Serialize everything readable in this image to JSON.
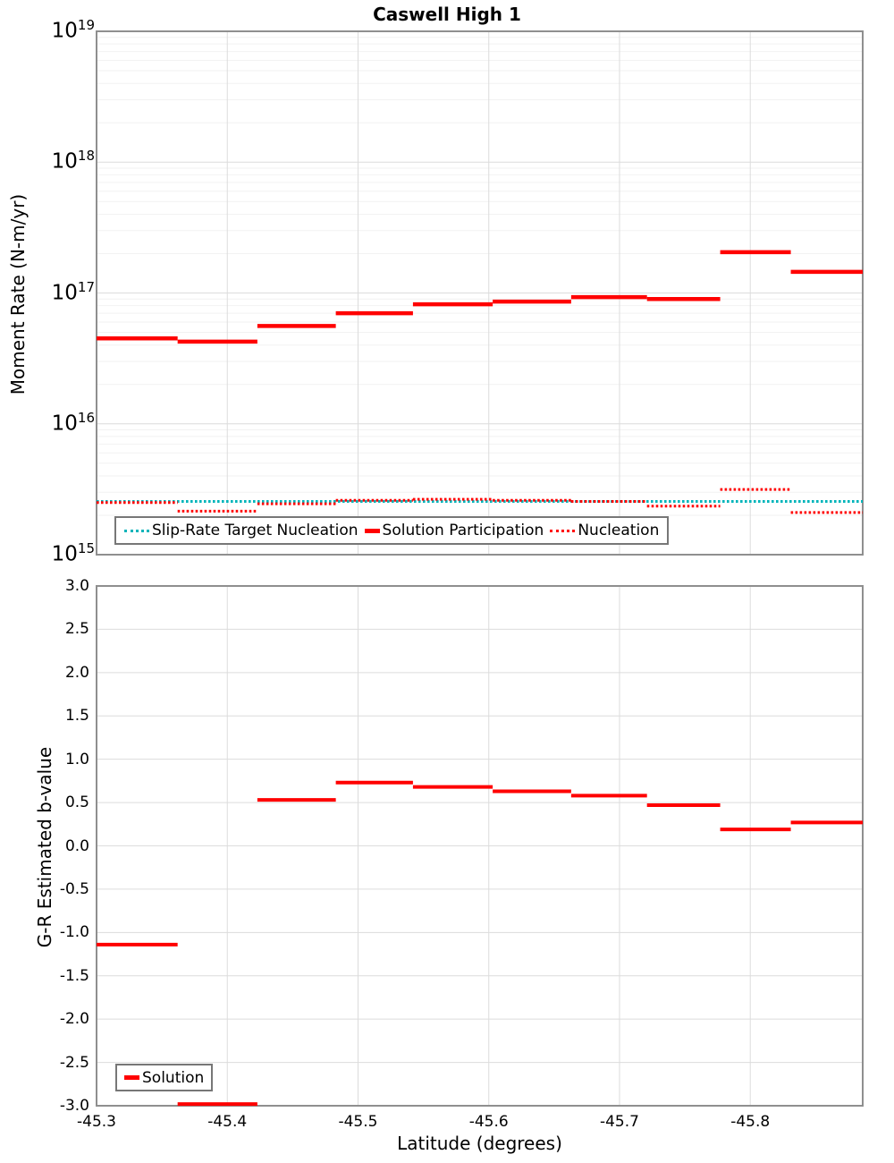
{
  "title": "Caswell High 1",
  "chart_data": [
    {
      "type": "step-line",
      "title": "Caswell High 1",
      "ylabel": "Moment Rate (N-m/yr)",
      "xlabel": "Latitude (degrees)",
      "y_scale": "log10",
      "ylim_exponents": [
        15,
        19
      ],
      "ytick_base": "10",
      "ytick_exponents": [
        19,
        18,
        17,
        16,
        15
      ],
      "xlim": [
        -45.3,
        -45.886
      ],
      "xtick_values": [
        -45.3,
        -45.4,
        -45.5,
        -45.6,
        -45.7,
        -45.8
      ],
      "xtick_labels": [
        "-45.3",
        "-45.4",
        "-45.5",
        "-45.6",
        "-45.7",
        "-45.8"
      ],
      "grid": true,
      "legend_position": "inside-bottom-left",
      "bin_edges": [
        -45.3,
        -45.362,
        -45.423,
        -45.483,
        -45.542,
        -45.603,
        -45.663,
        -45.721,
        -45.777,
        -45.831,
        -45.886
      ],
      "series": [
        {
          "name": "Slip-Rate Target Nucleation",
          "color": "#00b4ba",
          "line_style": "dotted",
          "values": [
            2550000000000000.0,
            2550000000000000.0,
            2550000000000000.0,
            2550000000000000.0,
            2550000000000000.0,
            2550000000000000.0,
            2550000000000000.0,
            2550000000000000.0,
            2550000000000000.0,
            2550000000000000.0
          ]
        },
        {
          "name": "Solution Participation",
          "color": "#ff0000",
          "line_style": "solid",
          "values": [
            4.5e+16,
            4.25e+16,
            5.6e+16,
            7e+16,
            8.2e+16,
            8.6e+16,
            9.3e+16,
            9e+16,
            2.05e+17,
            1.45e+17
          ]
        },
        {
          "name": "Nucleation",
          "color": "#ff0000",
          "line_style": "dotted",
          "values": [
            2500000000000000.0,
            2150000000000000.0,
            2450000000000000.0,
            2600000000000000.0,
            2650000000000000.0,
            2600000000000000.0,
            2550000000000000.0,
            2350000000000000.0,
            3150000000000000.0,
            2100000000000000.0
          ]
        }
      ]
    },
    {
      "type": "step-line",
      "ylabel": "G-R Estimated b-value",
      "ylim": [
        -3.0,
        3.0
      ],
      "ytick_values": [
        3.0,
        2.5,
        2.0,
        1.5,
        1.0,
        0.5,
        0.0,
        -0.5,
        -1.0,
        -1.5,
        -2.0,
        -2.5,
        -3.0
      ],
      "ytick_labels": [
        "3.0",
        "2.5",
        "2.0",
        "1.5",
        "1.0",
        "0.5",
        "0.0",
        "-0.5",
        "-1.0",
        "-1.5",
        "-2.0",
        "-2.5",
        "-3.0"
      ],
      "grid": true,
      "legend_position": "inside-bottom-left",
      "series": [
        {
          "name": "Solution",
          "color": "#ff0000",
          "line_style": "solid",
          "values": [
            -1.14,
            -2.98,
            0.53,
            0.73,
            0.68,
            0.63,
            0.58,
            0.47,
            0.19,
            0.27
          ]
        }
      ]
    }
  ]
}
